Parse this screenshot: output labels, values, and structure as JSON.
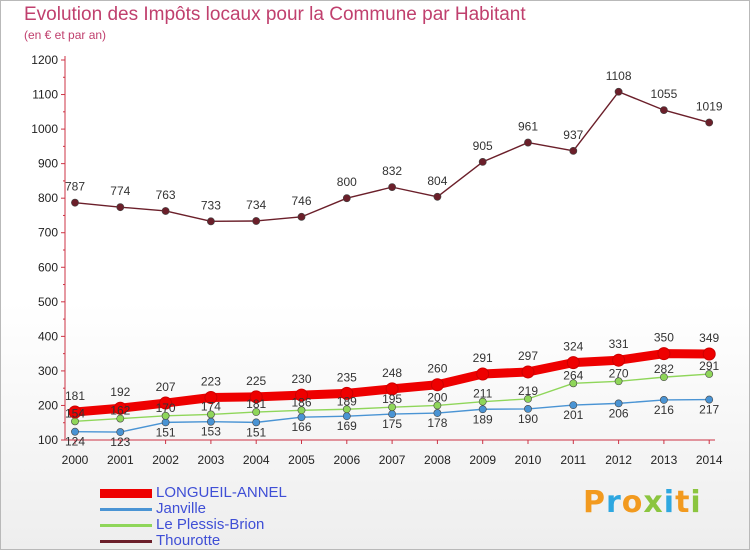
{
  "header": {
    "title": "Evolution des Impôts locaux pour la Commune par Habitant",
    "subtitle": "(en € et par an)"
  },
  "logo": {
    "letters": [
      {
        "char": "P",
        "color": "#f29a1f"
      },
      {
        "char": "r",
        "color": "#2ea7e0"
      },
      {
        "char": "o",
        "color": "#f29a1f"
      },
      {
        "char": "x",
        "color": "#8bc53f"
      },
      {
        "char": "i",
        "color": "#2ea7e0"
      },
      {
        "char": "t",
        "color": "#f29a1f"
      },
      {
        "char": "i",
        "color": "#8bc53f"
      }
    ]
  },
  "chart_data": {
    "type": "line",
    "title": "Evolution des Impôts locaux pour la Commune par Habitant",
    "subtitle": "(en € et par an)",
    "x": [
      2000,
      2001,
      2002,
      2003,
      2004,
      2005,
      2006,
      2007,
      2008,
      2009,
      2010,
      2011,
      2012,
      2013,
      2014
    ],
    "ylim": [
      100,
      1200
    ],
    "yticks": [
      100,
      200,
      300,
      400,
      500,
      600,
      700,
      800,
      900,
      1000,
      1100,
      1200
    ],
    "grid": false,
    "legend_position": "bottom-left",
    "series": [
      {
        "name": "LONGUEIL-ANNEL",
        "color": "#ee0000",
        "values": [
          181,
          192,
          207,
          223,
          225,
          230,
          235,
          248,
          260,
          291,
          297,
          324,
          331,
          350,
          349
        ]
      },
      {
        "name": "Janville",
        "color": "#4a94d4",
        "values": [
          124,
          123,
          151,
          153,
          151,
          166,
          169,
          175,
          178,
          189,
          190,
          201,
          206,
          216,
          217
        ]
      },
      {
        "name": "Le Plessis-Brion",
        "color": "#8fd65a",
        "values": [
          154,
          162,
          170,
          174,
          181,
          186,
          189,
          195,
          200,
          211,
          219,
          264,
          270,
          282,
          291
        ]
      },
      {
        "name": "Thourotte",
        "color": "#6b1f2a",
        "values": [
          787,
          774,
          763,
          733,
          734,
          746,
          800,
          832,
          804,
          905,
          961,
          937,
          1108,
          1055,
          1019
        ]
      }
    ]
  }
}
